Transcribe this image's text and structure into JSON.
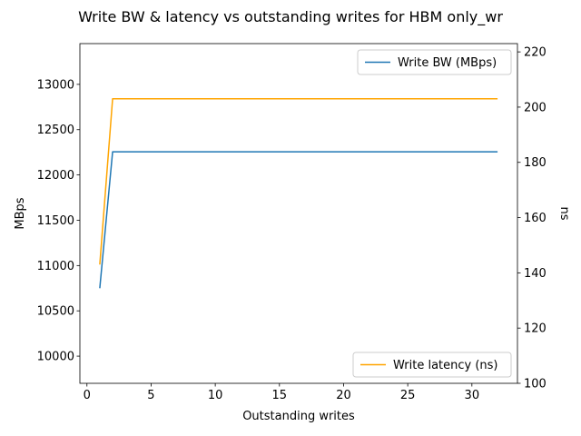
{
  "chart_data": {
    "type": "line",
    "title": "Write BW & latency vs outstanding writes for HBM only_wr",
    "xlabel": "Outstanding writes",
    "ylabel_left": "MBps",
    "ylabel_right": "ns",
    "xlim": [
      -0.55,
      33.55
    ],
    "ylim_left": [
      9700,
      13450
    ],
    "ylim_right": [
      100,
      223
    ],
    "xticks": [
      0,
      5,
      10,
      15,
      20,
      25,
      30
    ],
    "yticks_left": [
      10000,
      10500,
      11000,
      11500,
      12000,
      12500,
      13000
    ],
    "yticks_right": [
      100,
      120,
      140,
      160,
      180,
      200,
      220
    ],
    "grid": false,
    "series": [
      {
        "name": "Write BW (MBps)",
        "axis": "left",
        "color": "#1f77b4",
        "legend_position": "top-right",
        "x": [
          1,
          2,
          3,
          4,
          5,
          6,
          7,
          8,
          9,
          10,
          11,
          12,
          13,
          14,
          15,
          16,
          17,
          18,
          19,
          20,
          21,
          22,
          23,
          24,
          25,
          26,
          27,
          28,
          29,
          30,
          31,
          32
        ],
        "values": [
          10750,
          12255,
          12255,
          12255,
          12255,
          12255,
          12255,
          12255,
          12255,
          12255,
          12255,
          12255,
          12255,
          12255,
          12255,
          12255,
          12255,
          12255,
          12255,
          12255,
          12255,
          12255,
          12255,
          12255,
          12255,
          12255,
          12255,
          12255,
          12255,
          12255,
          12255,
          12255
        ]
      },
      {
        "name": "Write latency (ns)",
        "axis": "right",
        "color": "#ffa500",
        "legend_position": "bottom-right",
        "x": [
          1,
          2,
          3,
          4,
          5,
          6,
          7,
          8,
          9,
          10,
          11,
          12,
          13,
          14,
          15,
          16,
          17,
          18,
          19,
          20,
          21,
          22,
          23,
          24,
          25,
          26,
          27,
          28,
          29,
          30,
          31,
          32
        ],
        "values": [
          143,
          203,
          203,
          203,
          203,
          203,
          203,
          203,
          203,
          203,
          203,
          203,
          203,
          203,
          203,
          203,
          203,
          203,
          203,
          203,
          203,
          203,
          203,
          203,
          203,
          203,
          203,
          203,
          203,
          203,
          203,
          203
        ]
      }
    ]
  }
}
